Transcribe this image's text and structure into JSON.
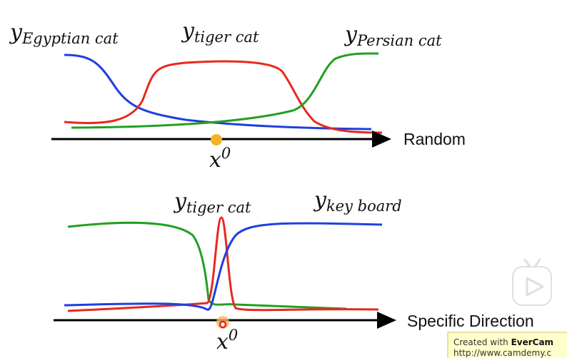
{
  "top": {
    "labels": [
      {
        "var": "y",
        "sub": "Egyptian cat"
      },
      {
        "var": "y",
        "sub": "tiger cat"
      },
      {
        "var": "y",
        "sub": "Persian cat"
      }
    ],
    "point": {
      "var": "x",
      "sup": "0"
    },
    "axis_label": "Random"
  },
  "bottom": {
    "labels": [
      {
        "var": "y",
        "sub": "tiger cat"
      },
      {
        "var": "y",
        "sub": "key board"
      }
    ],
    "point": {
      "var": "x",
      "sup": "0"
    },
    "axis_label": "Specific Direction"
  },
  "watermark": {
    "prefix": "Created with ",
    "brand": "EverCam",
    "url": "http://www.camdemy.c"
  }
}
